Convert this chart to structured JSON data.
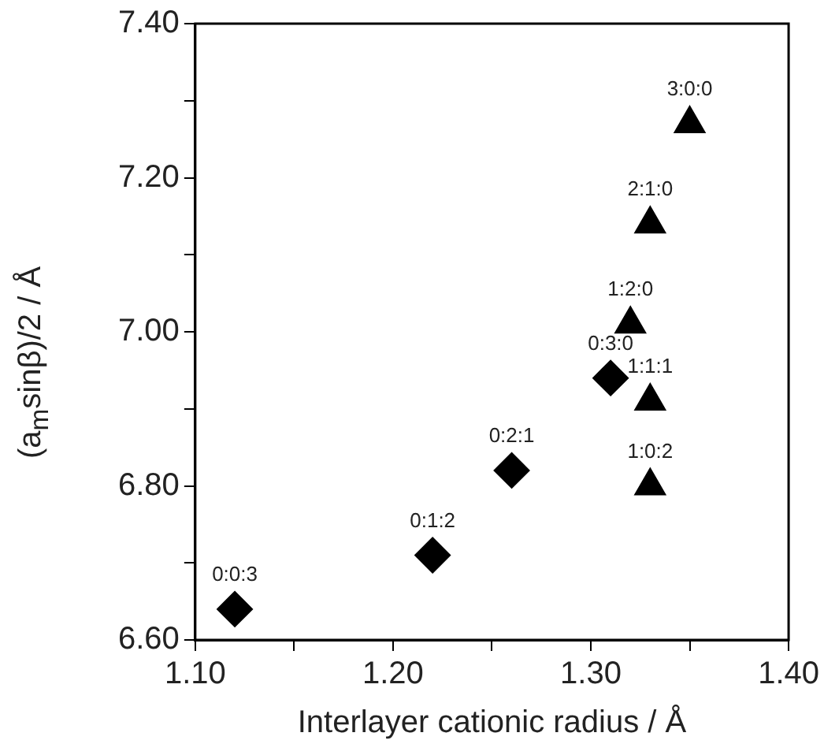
{
  "chart_data": {
    "type": "scatter",
    "xlabel": "Interlayer cationic radius / Å",
    "ylabel": "(a$_{m}$sinβ)/2 / Å",
    "series": [
      {
        "color": "#000000",
        "marker": "diamond",
        "x": [
          1.12,
          1.22,
          1.26,
          1.31
        ],
        "values": [
          6.64,
          6.71,
          6.82,
          6.94
        ]
      },
      {
        "color": "#000000",
        "marker": "triangle",
        "x": [
          1.32,
          1.33,
          1.33,
          1.33,
          1.35
        ],
        "values": [
          7.01,
          6.91,
          6.8,
          7.14,
          7.27
        ]
      }
    ],
    "xlim": [
      1.1,
      1.4
    ],
    "xticks": [
      {
        "value": 1.1,
        "label": "1.10"
      },
      {
        "value": 1.15,
        "label": null
      },
      {
        "value": 1.2,
        "label": "1.20"
      },
      {
        "value": 1.25,
        "label": null
      },
      {
        "value": 1.3,
        "label": "1.30"
      },
      {
        "value": 1.35,
        "label": null
      },
      {
        "value": 1.4,
        "label": "1.40"
      }
    ],
    "ylim": [
      6.6,
      7.4
    ],
    "yticks": [
      {
        "value": 6.6,
        "label": "6.60"
      },
      {
        "value": 6.7,
        "label": null
      },
      {
        "value": 6.8,
        "label": "6.80"
      },
      {
        "value": 6.9,
        "label": null
      },
      {
        "value": 7.0,
        "label": "7.00"
      },
      {
        "value": 7.1,
        "label": null
      },
      {
        "value": 7.2,
        "label": "7.20"
      },
      {
        "value": 7.3,
        "label": null
      },
      {
        "value": 7.4,
        "label": "7.40"
      }
    ],
    "grid": false,
    "legend": false,
    "annotations": [
      {
        "text": "0:0:3",
        "x": 1.12,
        "y": 6.64
      },
      {
        "text": "0:1:2",
        "x": 1.22,
        "y": 6.71
      },
      {
        "text": "0:2:1",
        "x": 1.26,
        "y": 6.82
      },
      {
        "text": "0:3:0",
        "x": 1.31,
        "y": 6.94
      },
      {
        "text": "1:2:0",
        "x": 1.32,
        "y": 7.01
      },
      {
        "text": "1:1:1",
        "x": 1.33,
        "y": 6.91
      },
      {
        "text": "1:0:2",
        "x": 1.33,
        "y": 6.8
      },
      {
        "text": "2:1:0",
        "x": 1.33,
        "y": 7.14
      },
      {
        "text": "3:0:0",
        "x": 1.35,
        "y": 7.27
      }
    ]
  }
}
